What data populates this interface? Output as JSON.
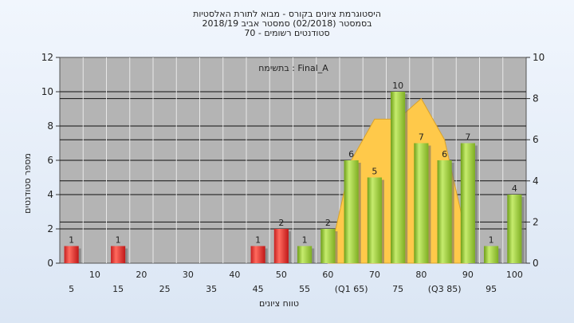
{
  "chart_data": {
    "type": "bar",
    "title_lines": [
      "היסטוגרמת ציונים בקורס - מבוא לתורת האלסטיות",
      "בסמסטר  (02/2018)  סמסטר אביב 2018/19",
      "סטודנטים רשומים - 70"
    ],
    "annotation": "בתשימח : Final_A",
    "ylabel": "מספר סטודנטים",
    "xlabel": "טווח ציונים",
    "ylim": [
      0,
      12
    ],
    "yticks": [
      "0",
      "2",
      "4",
      "6",
      "8",
      "10",
      "12"
    ],
    "y2lim": [
      0,
      10
    ],
    "y2ticks": [
      "0",
      "2",
      "4",
      "6",
      "8",
      "10"
    ],
    "x_labels_lower": [
      "5",
      "15",
      "25",
      "35",
      "45",
      "55",
      "(Q1 65)",
      "75",
      "(Q3 85)",
      "95"
    ],
    "x_labels_upper": [
      "10",
      "20",
      "30",
      "40",
      "50",
      "60",
      "70",
      "80",
      "90",
      "100"
    ],
    "bins": [
      "5",
      "10",
      "15",
      "20",
      "25",
      "30",
      "35",
      "40",
      "45",
      "50",
      "55",
      "60",
      "65",
      "70",
      "75",
      "80",
      "85",
      "90",
      "95",
      "100"
    ],
    "values": [
      1,
      0,
      1,
      0,
      0,
      0,
      0,
      0,
      1,
      2,
      1,
      2,
      6,
      5,
      10,
      7,
      6,
      7,
      1,
      4
    ],
    "value_labels": [
      "1",
      "",
      "1",
      "",
      "",
      "",
      "",
      "",
      "1",
      "2",
      "1",
      "2",
      "6",
      "5",
      "10",
      "7",
      "6",
      "7",
      "1",
      "4"
    ],
    "bar_colors": [
      "red",
      "",
      "red",
      "",
      "",
      "",
      "",
      "",
      "red",
      "red",
      "green",
      "green",
      "green",
      "green",
      "green",
      "green",
      "green",
      "green",
      "green",
      "green"
    ],
    "area_series": {
      "x": [
        "60",
        "65",
        "70",
        "75",
        "80",
        "85",
        "90"
      ],
      "values": [
        0,
        5,
        7,
        7,
        8,
        6,
        1
      ]
    },
    "colors": {
      "red": "#e53935",
      "green": "#96c832",
      "area": "#ffc94a",
      "plot_bg": "#b4b4b4"
    }
  }
}
